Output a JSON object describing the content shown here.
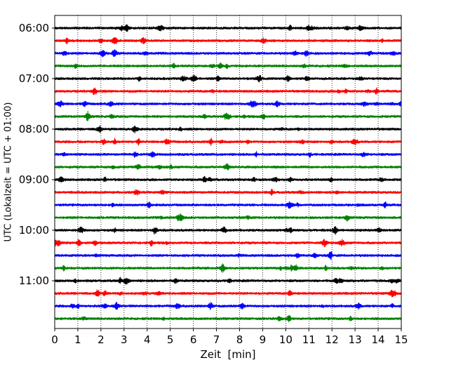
{
  "chart_data": {
    "type": "line",
    "title": "",
    "xlabel": "Zeit  [min]",
    "ylabel": "UTC (Lokalzeit = UTC + 01:00)",
    "xlim": [
      0,
      15
    ],
    "x_ticks": [
      "0",
      "1",
      "2",
      "3",
      "4",
      "5",
      "6",
      "7",
      "8",
      "9",
      "10",
      "11",
      "12",
      "13",
      "14",
      "15"
    ],
    "y_ticks": [
      "06:00",
      "07:00",
      "08:00",
      "09:00",
      "10:00",
      "11:00"
    ],
    "grid": "vertical dotted at each minute",
    "trace_interval_min": 15,
    "trace_colors": [
      "#000000",
      "#ff0000",
      "#0000ff",
      "#008000"
    ],
    "traces": [
      {
        "start": "06:00"
      },
      {
        "start": "06:15"
      },
      {
        "start": "06:30"
      },
      {
        "start": "06:45"
      },
      {
        "start": "07:00"
      },
      {
        "start": "07:15"
      },
      {
        "start": "07:30"
      },
      {
        "start": "07:45"
      },
      {
        "start": "08:00"
      },
      {
        "start": "08:15"
      },
      {
        "start": "08:30"
      },
      {
        "start": "08:45"
      },
      {
        "start": "09:00"
      },
      {
        "start": "09:15"
      },
      {
        "start": "09:30"
      },
      {
        "start": "09:45"
      },
      {
        "start": "10:00"
      },
      {
        "start": "10:15"
      },
      {
        "start": "10:30"
      },
      {
        "start": "10:45"
      },
      {
        "start": "11:00"
      },
      {
        "start": "11:15"
      },
      {
        "start": "11:30"
      },
      {
        "start": "11:45"
      }
    ]
  }
}
